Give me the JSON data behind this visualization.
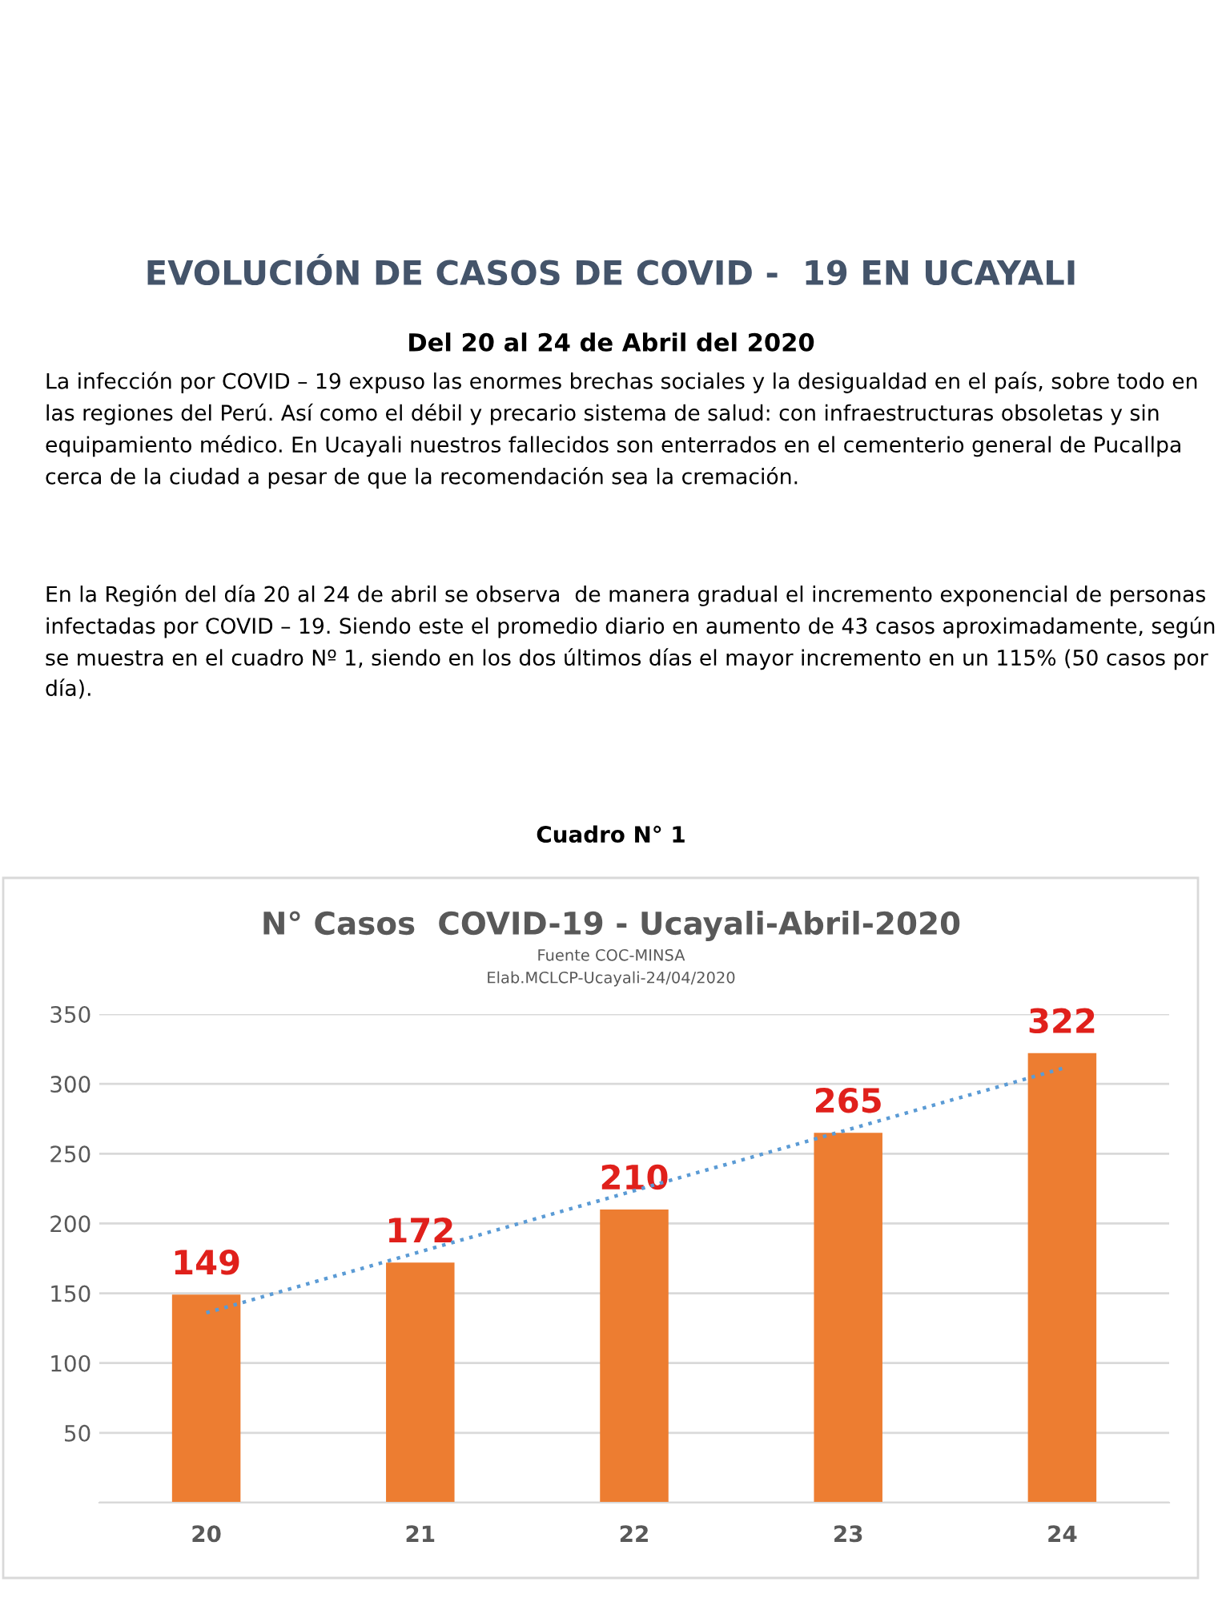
{
  "chart_data": {
    "type": "bar",
    "title": "EVOLUCIÓN DE CASOS DE COVID -  19 EN UCAYALI",
    "subtitle": "Del 20 al 24 de Abril del 2020",
    "annotations": [
      "La infección por COVID – 19 expuso las enormes brechas sociales y la desigualdad en el país, sobre todo en las regiones del Perú. Así como el débil y precario sistema de salud: con infraestructuras obsoletas y sin equipamiento médico. En Ucayali nuestros fallecidos son enterrados en el cementerio general de Pucallpa cerca de la ciudad a pesar de que la recomendación sea la cremación.",
      "En la Región del día 20 al 24 de abril se observa  de manera gradual el incremento exponencial de personas infectadas por COVID – 19. Siendo este el promedio diario en aumento de 43 casos aproximadamente, según se muestra en el cuadro Nº 1, siendo en los dos últimos días el mayor incremento en un 115% (50 casos por día).",
      "Cuadro N° 1",
      "N° Casos  COVID-19 - Ucayali-Abril-2020",
      "Fuente COC-MINSA",
      "Elab.MCLCP-Ucayali-24/04/2020"
    ],
    "categories": [
      "20",
      "21",
      "22",
      "23",
      "24"
    ],
    "series": [
      {
        "color": "#ed7d31",
        "values": [
          149,
          172,
          210,
          265,
          322
        ],
        "data_labels": true
      },
      {
        "type": "line",
        "color": "#5b9bd5",
        "x": [
          "20",
          "24"
        ],
        "values": [
          136,
          311
        ],
        "line_style": "dotted"
      }
    ],
    "ylim": [
      0,
      350
    ],
    "yticks": [
      {
        "value": 0,
        "label": null
      },
      50,
      100,
      150,
      200,
      250,
      300,
      350
    ],
    "grid": "y"
  }
}
